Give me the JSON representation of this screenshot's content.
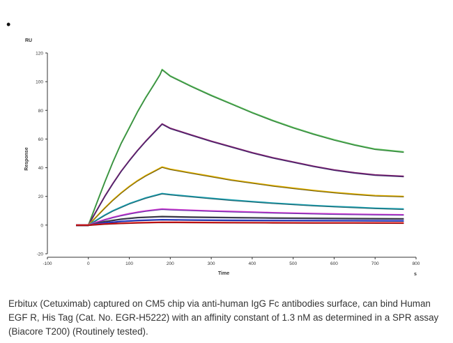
{
  "bullet": "•",
  "caption": "Erbitux (Cetuximab) captured on CM5 chip via anti-human IgG Fc antibodies surface, can bind Human EGF R, His Tag (Cat. No. EGR-H5222) with an affinity constant of 1.3 nM as determined in a SPR assay (Biacore T200) (Routinely tested).",
  "chart_data": {
    "type": "line",
    "title": "",
    "xlabel": "Time",
    "ylabel": "Response",
    "y_unit": "RU",
    "x_unit": "s",
    "xlim": [
      -100,
      800
    ],
    "ylim": [
      -20,
      120
    ],
    "xticks": [
      -100,
      0,
      100,
      200,
      300,
      400,
      500,
      600,
      700,
      800
    ],
    "yticks": [
      -20,
      0,
      20,
      40,
      60,
      80,
      100,
      120
    ],
    "grid": false,
    "legend": "none",
    "series": [
      {
        "color": "#2f7a3a",
        "fit_color": "#55b855",
        "points": [
          [
            -30,
            0
          ],
          [
            0,
            0
          ],
          [
            20,
            15
          ],
          [
            40,
            30
          ],
          [
            60,
            44
          ],
          [
            80,
            57
          ],
          [
            100,
            68
          ],
          [
            120,
            79
          ],
          [
            140,
            89
          ],
          [
            160,
            98
          ],
          [
            175,
            105
          ],
          [
            180,
            108.5
          ],
          [
            200,
            104
          ],
          [
            250,
            97
          ],
          [
            300,
            90.5
          ],
          [
            350,
            84.5
          ],
          [
            400,
            78.5
          ],
          [
            450,
            73
          ],
          [
            500,
            68
          ],
          [
            550,
            63.5
          ],
          [
            600,
            59.5
          ],
          [
            650,
            56
          ],
          [
            700,
            53
          ],
          [
            770,
            51
          ]
        ]
      },
      {
        "color": "#3c2a6a",
        "fit_color": "#7a1e6e",
        "points": [
          [
            -30,
            0
          ],
          [
            0,
            0
          ],
          [
            20,
            10
          ],
          [
            40,
            20
          ],
          [
            60,
            29
          ],
          [
            80,
            37.5
          ],
          [
            100,
            45
          ],
          [
            120,
            52
          ],
          [
            140,
            58.5
          ],
          [
            160,
            64.5
          ],
          [
            180,
            70.5
          ],
          [
            200,
            67.5
          ],
          [
            250,
            63
          ],
          [
            300,
            58.5
          ],
          [
            350,
            54.5
          ],
          [
            400,
            50.5
          ],
          [
            450,
            47
          ],
          [
            500,
            44
          ],
          [
            550,
            41
          ],
          [
            600,
            38.5
          ],
          [
            650,
            36.5
          ],
          [
            700,
            35
          ],
          [
            770,
            34
          ]
        ]
      },
      {
        "color": "#6b5a10",
        "fit_color": "#e0b000",
        "points": [
          [
            -30,
            0
          ],
          [
            0,
            0
          ],
          [
            20,
            6
          ],
          [
            40,
            12
          ],
          [
            60,
            17.5
          ],
          [
            80,
            22.5
          ],
          [
            100,
            27
          ],
          [
            120,
            31
          ],
          [
            140,
            34.5
          ],
          [
            160,
            37.5
          ],
          [
            180,
            40.5
          ],
          [
            200,
            39
          ],
          [
            250,
            36.5
          ],
          [
            300,
            34
          ],
          [
            350,
            31.5
          ],
          [
            400,
            29.5
          ],
          [
            450,
            27.5
          ],
          [
            500,
            25.8
          ],
          [
            550,
            24.2
          ],
          [
            600,
            22.8
          ],
          [
            650,
            21.6
          ],
          [
            700,
            20.6
          ],
          [
            770,
            20
          ]
        ]
      },
      {
        "color": "#1f5f6a",
        "fit_color": "#1aa0b0",
        "points": [
          [
            -30,
            0
          ],
          [
            0,
            0
          ],
          [
            20,
            3.5
          ],
          [
            40,
            7
          ],
          [
            60,
            10
          ],
          [
            80,
            12.5
          ],
          [
            100,
            15
          ],
          [
            120,
            17
          ],
          [
            140,
            19
          ],
          [
            160,
            20.5
          ],
          [
            180,
            22
          ],
          [
            200,
            21.3
          ],
          [
            250,
            20
          ],
          [
            300,
            18.7
          ],
          [
            350,
            17.5
          ],
          [
            400,
            16.4
          ],
          [
            450,
            15.4
          ],
          [
            500,
            14.5
          ],
          [
            550,
            13.7
          ],
          [
            600,
            13
          ],
          [
            650,
            12.4
          ],
          [
            700,
            11.8
          ],
          [
            770,
            11.2
          ]
        ]
      },
      {
        "color": "#5a2aa0",
        "fit_color": "#d03ad0",
        "points": [
          [
            -30,
            0
          ],
          [
            0,
            0
          ],
          [
            20,
            2
          ],
          [
            40,
            3.8
          ],
          [
            60,
            5.4
          ],
          [
            80,
            6.8
          ],
          [
            100,
            8
          ],
          [
            120,
            9
          ],
          [
            140,
            9.9
          ],
          [
            160,
            10.6
          ],
          [
            180,
            11.2
          ],
          [
            200,
            10.9
          ],
          [
            250,
            10.4
          ],
          [
            300,
            9.9
          ],
          [
            350,
            9.5
          ],
          [
            400,
            9.1
          ],
          [
            450,
            8.7
          ],
          [
            500,
            8.4
          ],
          [
            550,
            8.1
          ],
          [
            600,
            7.8
          ],
          [
            650,
            7.6
          ],
          [
            700,
            7.4
          ],
          [
            770,
            7.2
          ]
        ]
      },
      {
        "color": "#2a2a55",
        "fit_color": "#444444",
        "points": [
          [
            -30,
            0
          ],
          [
            0,
            0
          ],
          [
            40,
            2.5
          ],
          [
            80,
            4.2
          ],
          [
            120,
            5.3
          ],
          [
            180,
            6
          ],
          [
            250,
            5.6
          ],
          [
            350,
            5.3
          ],
          [
            450,
            5
          ],
          [
            550,
            4.8
          ],
          [
            650,
            4.6
          ],
          [
            770,
            4.4
          ]
        ]
      },
      {
        "color": "#1b2a8a",
        "fit_color": "#2a3ad0",
        "points": [
          [
            -30,
            0
          ],
          [
            0,
            0
          ],
          [
            40,
            1.5
          ],
          [
            80,
            2.6
          ],
          [
            120,
            3.3
          ],
          [
            180,
            3.8
          ],
          [
            250,
            3.6
          ],
          [
            350,
            3.4
          ],
          [
            450,
            3.3
          ],
          [
            550,
            3.2
          ],
          [
            650,
            3.1
          ],
          [
            770,
            3
          ]
        ]
      },
      {
        "color": "#8a1010",
        "fit_color": "#e01010",
        "points": [
          [
            -30,
            0
          ],
          [
            0,
            0
          ],
          [
            40,
            0.8
          ],
          [
            80,
            1.3
          ],
          [
            120,
            1.7
          ],
          [
            180,
            2
          ],
          [
            250,
            1.9
          ],
          [
            350,
            1.8
          ],
          [
            450,
            1.7
          ],
          [
            550,
            1.6
          ],
          [
            650,
            1.6
          ],
          [
            770,
            1.5
          ]
        ]
      }
    ]
  }
}
